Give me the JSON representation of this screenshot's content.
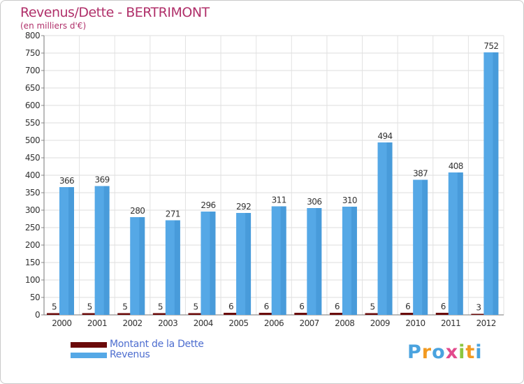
{
  "chart_data": {
    "type": "bar",
    "title": "Revenus/Dette - BERTRIMONT",
    "subtitle": "(en milliers d'€)",
    "xlabel": "",
    "ylabel": "",
    "ylim": [
      0,
      800
    ],
    "yticks": [
      0,
      50,
      100,
      150,
      200,
      250,
      300,
      350,
      400,
      450,
      500,
      550,
      600,
      650,
      700,
      750,
      800
    ],
    "grid": true,
    "categories": [
      "2000",
      "2001",
      "2002",
      "2003",
      "2004",
      "2005",
      "2006",
      "2007",
      "2008",
      "2009",
      "2010",
      "2011",
      "2012"
    ],
    "series": [
      {
        "name": "Montant de la Dette",
        "color": "#6b0a0a",
        "values": [
          5,
          5,
          5,
          5,
          5,
          6,
          6,
          6,
          6,
          5,
          6,
          6,
          3
        ]
      },
      {
        "name": "Revenus",
        "color": "#55a8e6",
        "values": [
          366,
          369,
          280,
          271,
          296,
          292,
          311,
          306,
          310,
          494,
          387,
          408,
          752
        ]
      }
    ],
    "legend_position": "bottom-left"
  },
  "branding": {
    "letters": [
      "P",
      "r",
      "o",
      "x",
      "i",
      "t",
      "i"
    ],
    "colors": [
      "#4aa3df",
      "#f29a21",
      "#4aa3df",
      "#e24a8c",
      "#8cc63f",
      "#f29a21",
      "#4aa3df"
    ]
  }
}
